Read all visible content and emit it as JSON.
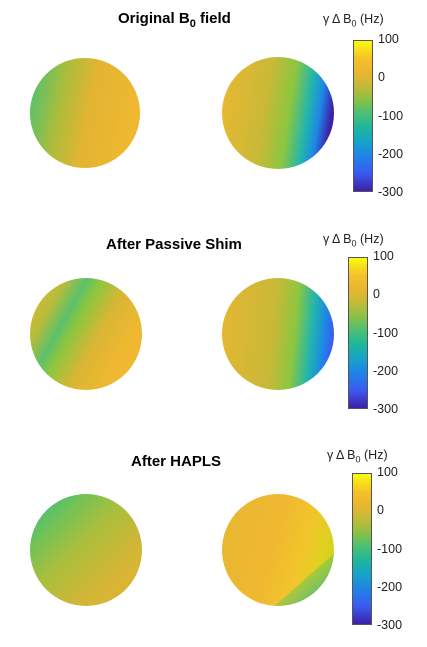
{
  "panels": [
    {
      "title_main": "Original B",
      "title_sub": "0",
      "title_rest": " field",
      "colorbar": {
        "label_main": "γ Δ B",
        "label_sub": "0",
        "label_rest": " (Hz)",
        "ticks": [
          "100",
          "0",
          "-100",
          "-200",
          "-300"
        ]
      }
    },
    {
      "title_main": "After Passive Shim",
      "title_sub": "",
      "title_rest": "",
      "colorbar": {
        "label_main": "γ Δ B",
        "label_sub": "0",
        "label_rest": " (Hz)",
        "ticks": [
          "100",
          "0",
          "-100",
          "-200",
          "-300"
        ]
      }
    },
    {
      "title_main": "After HAPLS",
      "title_sub": "",
      "title_rest": "",
      "colorbar": {
        "label_main": "γ Δ B",
        "label_sub": "0",
        "label_rest": " (Hz)",
        "ticks": [
          "100",
          "0",
          "-100",
          "-200",
          "-300"
        ]
      }
    }
  ],
  "colors": {
    "yellow": "#f9fb0e",
    "orange": "#f0b830",
    "green": "#8cc63f",
    "teal": "#1fb8a6",
    "blue": "#1e86e6",
    "purple": "#3d1fa8"
  }
}
